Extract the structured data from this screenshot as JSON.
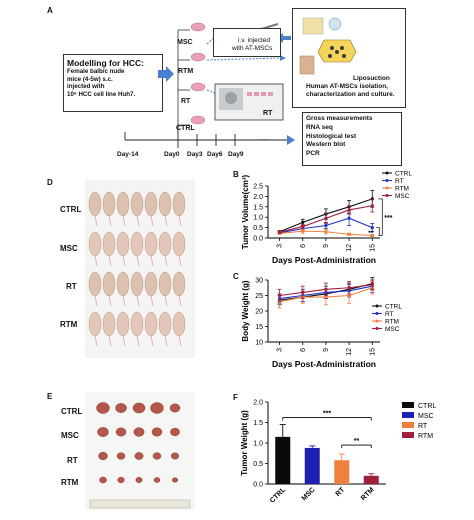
{
  "panels": {
    "a": {
      "letter": "A",
      "model_title": "Modelling for HCC:",
      "model_desc": [
        "Female balb/c nude",
        "mice (4-5w)  s.c.",
        "injected with",
        "10⁶  HCC cell line Huh7."
      ],
      "groups": [
        "MSC",
        "RTM",
        "RT",
        "CTRL"
      ],
      "iv_text": [
        "i.v. injected",
        "with AT-MSCs"
      ],
      "rt_label": "RT",
      "lipo_text": [
        "Liposuction",
        "Human AT-MSCs isolation,",
        "characterization and culture."
      ],
      "analysis": [
        "Gross measurements",
        "RNA seq",
        "Histological test",
        "Western blot",
        "PCR"
      ],
      "days": [
        "Day-14",
        "Day0",
        "Day3",
        "Day6",
        "Day9"
      ],
      "ellipsis": "......"
    },
    "d": {
      "letter": "D",
      "groups": [
        "CTRL",
        "MSC",
        "RT",
        "RTM"
      ]
    },
    "e": {
      "letter": "E",
      "groups": [
        "CTRL",
        "MSC",
        "RT",
        "RTM"
      ]
    },
    "b": {
      "letter": "B"
    },
    "c": {
      "letter": "C"
    },
    "f": {
      "letter": "F"
    }
  },
  "chart_data": [
    {
      "id": "B",
      "type": "line",
      "xlabel": "Days Post-Administration",
      "ylabel": "Tumor Volume(cm³)",
      "x": [
        3,
        6,
        9,
        12,
        15
      ],
      "ylim": [
        0,
        2.5
      ],
      "yticks": [
        0.0,
        0.5,
        1.0,
        1.5,
        2.0,
        2.5
      ],
      "xticks": [
        "3",
        "6",
        "9",
        "12",
        "15"
      ],
      "legend_position": "top-right",
      "series": [
        {
          "name": "CTRL",
          "color": "#111111",
          "values": [
            0.3,
            0.75,
            1.15,
            1.5,
            1.88
          ],
          "err": [
            0.05,
            0.15,
            0.25,
            0.3,
            0.4
          ]
        },
        {
          "name": "RT",
          "color": "#2030c8",
          "values": [
            0.25,
            0.45,
            0.6,
            0.95,
            0.5
          ],
          "err": [
            0.05,
            0.1,
            0.15,
            0.35,
            0.2
          ]
        },
        {
          "name": "RTM",
          "color": "#f08040",
          "values": [
            0.22,
            0.33,
            0.3,
            0.18,
            0.12
          ],
          "err": [
            0.05,
            0.1,
            0.1,
            0.05,
            0.05
          ]
        },
        {
          "name": "MSC",
          "color": "#a0203c",
          "values": [
            0.28,
            0.55,
            0.95,
            1.35,
            1.55
          ],
          "err": [
            0.05,
            0.1,
            0.25,
            0.2,
            0.3
          ]
        }
      ],
      "annotations": [
        "***",
        "**"
      ]
    },
    {
      "id": "C",
      "type": "line",
      "xlabel": "Days Post-Administration",
      "ylabel": "Body Weight (g)",
      "x": [
        3,
        6,
        9,
        12,
        15
      ],
      "ylim": [
        10,
        30
      ],
      "yticks": [
        10,
        15,
        20,
        25,
        30
      ],
      "xticks": [
        "3",
        "6",
        "9",
        "12",
        "15"
      ],
      "legend_position": "bottom-right",
      "series": [
        {
          "name": "CTRL",
          "color": "#111111",
          "values": [
            23.5,
            24.5,
            25.5,
            27,
            28.8
          ],
          "err": [
            1.5,
            1.5,
            1.5,
            2,
            2
          ]
        },
        {
          "name": "RT",
          "color": "#2030c8",
          "values": [
            24,
            25,
            26,
            26.5,
            28
          ],
          "err": [
            1.5,
            2,
            2,
            2,
            2
          ]
        },
        {
          "name": "RTM",
          "color": "#f08040",
          "values": [
            23,
            24.5,
            24.5,
            25,
            27.5
          ],
          "err": [
            2,
            2,
            2.5,
            2.5,
            2
          ]
        },
        {
          "name": "MSC",
          "color": "#a0203c",
          "values": [
            25,
            26,
            27,
            27.5,
            28.5
          ],
          "err": [
            2,
            2,
            2,
            2,
            1.5
          ]
        }
      ]
    },
    {
      "id": "F",
      "type": "bar",
      "ylabel": "Tumor Weight (g)",
      "categories": [
        "CTRL",
        "MSC",
        "RT",
        "RTM"
      ],
      "values": [
        1.15,
        0.88,
        0.58,
        0.2
      ],
      "err": [
        0.3,
        0.05,
        0.15,
        0.05
      ],
      "colors": [
        "#0a0a0a",
        "#2020b0",
        "#f08040",
        "#a0203c"
      ],
      "ylim": [
        0,
        2.0
      ],
      "yticks": [
        0.0,
        0.5,
        1.0,
        1.5,
        2.0
      ],
      "legend_position": "top-right",
      "annotations": [
        "***",
        "**"
      ]
    }
  ]
}
